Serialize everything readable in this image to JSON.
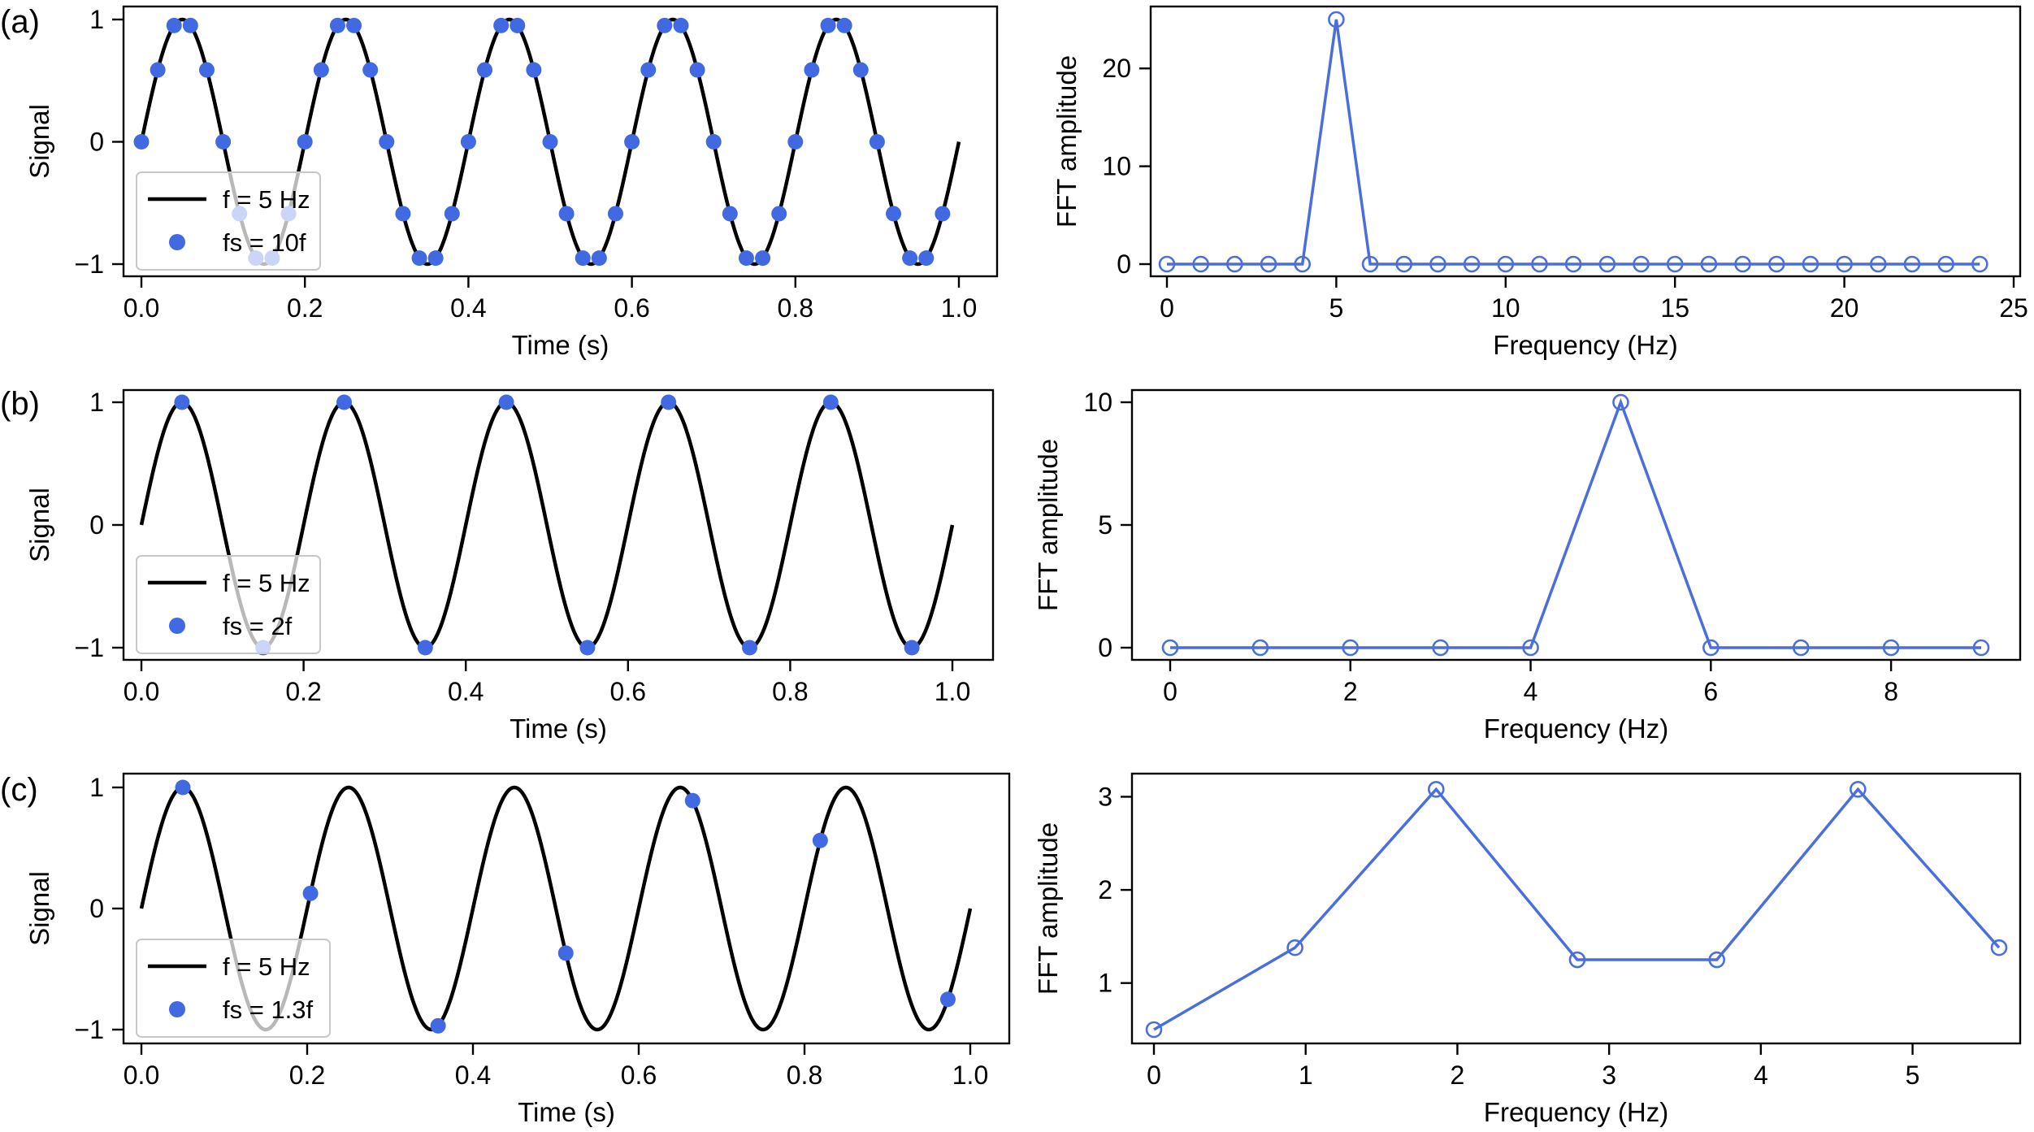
{
  "figure": {
    "panels": [
      "(a)",
      "(b)",
      "(c)"
    ],
    "colors": {
      "signal": "#000000",
      "samples": "#4169e1",
      "fft": "#4a6fdc"
    }
  },
  "chart_data": [
    {
      "id": "a-left",
      "type": "line",
      "panel": "(a)",
      "xlabel": "Time (s)",
      "ylabel": "Signal",
      "xlim": [
        0.0,
        1.0
      ],
      "ylim": [
        -1,
        1
      ],
      "xticks": [
        0.0,
        0.2,
        0.4,
        0.6,
        0.8,
        1.0
      ],
      "xtick_labels": [
        "0.0",
        "0.2",
        "0.4",
        "0.6",
        "0.8",
        "1.0"
      ],
      "yticks": [
        -1,
        0,
        1
      ],
      "ytick_labels": [
        "−1",
        "0",
        "1"
      ],
      "signal": {
        "name": "f = 5 Hz",
        "frequency_hz": 5,
        "function": "sin"
      },
      "samples": {
        "name": "fs = 10f",
        "sample_rate_hz": 50,
        "t_start": 0.0,
        "t_end": 0.98
      },
      "legend": [
        "f = 5 Hz",
        "fs = 10f"
      ],
      "legend_position": "lower-left"
    },
    {
      "id": "a-right",
      "type": "line",
      "panel": "(a)",
      "xlabel": "Frequency (Hz)",
      "ylabel": "FFT amplitude",
      "xlim": [
        0,
        25
      ],
      "ylim": [
        0,
        25
      ],
      "xticks": [
        0,
        5,
        10,
        15,
        20,
        25
      ],
      "xtick_labels": [
        "0",
        "5",
        "10",
        "15",
        "20",
        "25"
      ],
      "yticks": [
        0,
        10,
        20
      ],
      "ytick_labels": [
        "0",
        "10",
        "20"
      ],
      "series": [
        {
          "x": [
            0,
            1,
            2,
            3,
            4,
            5,
            6,
            7,
            8,
            9,
            10,
            11,
            12,
            13,
            14,
            15,
            16,
            17,
            18,
            19,
            20,
            21,
            22,
            23,
            24
          ],
          "y": [
            0,
            0,
            0,
            0,
            0,
            25,
            0,
            0,
            0,
            0,
            0,
            0,
            0,
            0,
            0,
            0,
            0,
            0,
            0,
            0,
            0,
            0,
            0,
            0,
            0
          ]
        }
      ]
    },
    {
      "id": "b-left",
      "type": "line",
      "panel": "(b)",
      "xlabel": "Time (s)",
      "ylabel": "Signal",
      "xlim": [
        0.0,
        1.0
      ],
      "ylim": [
        -1,
        1
      ],
      "xticks": [
        0.0,
        0.2,
        0.4,
        0.6,
        0.8,
        1.0
      ],
      "xtick_labels": [
        "0.0",
        "0.2",
        "0.4",
        "0.6",
        "0.8",
        "1.0"
      ],
      "yticks": [
        -1,
        0,
        1
      ],
      "ytick_labels": [
        "−1",
        "0",
        "1"
      ],
      "signal": {
        "name": "f = 5 Hz",
        "frequency_hz": 5,
        "function": "sin"
      },
      "samples": {
        "name": "fs = 2f",
        "t": [
          0.05,
          0.15,
          0.25,
          0.35,
          0.45,
          0.55,
          0.65,
          0.75,
          0.85,
          0.95
        ]
      },
      "legend": [
        "f = 5 Hz",
        "fs = 2f"
      ],
      "legend_position": "lower-left"
    },
    {
      "id": "b-right",
      "type": "line",
      "panel": "(b)",
      "xlabel": "Frequency (Hz)",
      "ylabel": "FFT amplitude",
      "xlim": [
        0,
        9
      ],
      "ylim": [
        0,
        10
      ],
      "xticks": [
        0,
        2,
        4,
        6,
        8
      ],
      "xtick_labels": [
        "0",
        "2",
        "4",
        "6",
        "8"
      ],
      "yticks": [
        0,
        5,
        10
      ],
      "ytick_labels": [
        "0",
        "5",
        "10"
      ],
      "series": [
        {
          "x": [
            0,
            1,
            2,
            3,
            4,
            5,
            6,
            7,
            8,
            9
          ],
          "y": [
            0,
            0,
            0,
            0,
            0,
            10,
            0,
            0,
            0,
            0
          ]
        }
      ]
    },
    {
      "id": "c-left",
      "type": "line",
      "panel": "(c)",
      "xlabel": "Time (s)",
      "ylabel": "Signal",
      "xlim": [
        0.0,
        1.0
      ],
      "ylim": [
        -1,
        1
      ],
      "xticks": [
        0.0,
        0.2,
        0.4,
        0.6,
        0.8,
        1.0
      ],
      "xtick_labels": [
        "0.0",
        "0.2",
        "0.4",
        "0.6",
        "0.8",
        "1.0"
      ],
      "yticks": [
        -1,
        0,
        1
      ],
      "ytick_labels": [
        "−1",
        "0",
        "1"
      ],
      "signal": {
        "name": "f = 5 Hz",
        "frequency_hz": 5,
        "function": "sin"
      },
      "samples": {
        "name": "fs = 1.3f",
        "t": [
          0.05,
          0.204,
          0.358,
          0.512,
          0.665,
          0.819,
          0.973
        ]
      },
      "legend": [
        "f = 5 Hz",
        "fs = 1.3f"
      ],
      "legend_position": "lower-left"
    },
    {
      "id": "c-right",
      "type": "line",
      "panel": "(c)",
      "xlabel": "Frequency (Hz)",
      "ylabel": "FFT amplitude",
      "xlim": [
        0,
        5.57
      ],
      "ylim": [
        0.5,
        3.1
      ],
      "xticks": [
        0,
        1,
        2,
        3,
        4,
        5
      ],
      "xtick_labels": [
        "0",
        "1",
        "2",
        "3",
        "4",
        "5"
      ],
      "yticks": [
        1,
        2,
        3
      ],
      "ytick_labels": [
        "1",
        "2",
        "3"
      ],
      "series": [
        {
          "x": [
            0,
            0.93,
            1.86,
            2.79,
            3.71,
            4.64,
            5.57
          ],
          "y": [
            0.5,
            1.38,
            3.08,
            1.25,
            1.25,
            3.08,
            1.38
          ]
        }
      ]
    }
  ]
}
